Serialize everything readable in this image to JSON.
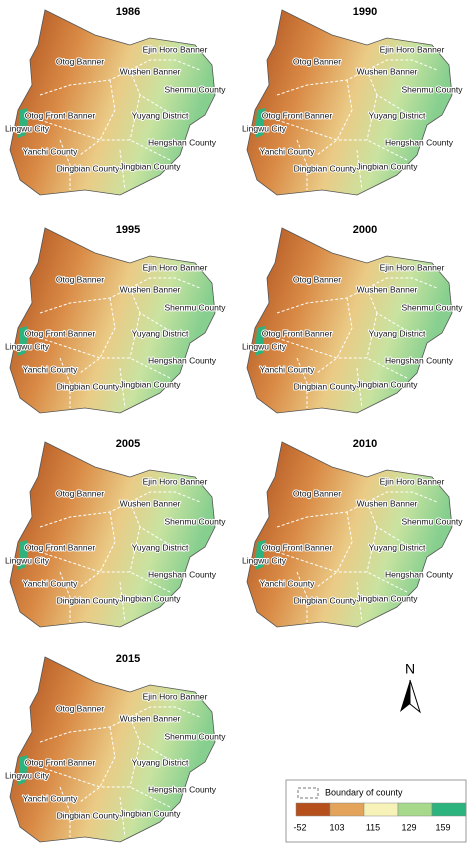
{
  "panels": [
    {
      "year": "1986"
    },
    {
      "year": "1990"
    },
    {
      "year": "1995"
    },
    {
      "year": "2000"
    },
    {
      "year": "2005"
    },
    {
      "year": "2010"
    },
    {
      "year": "2015"
    }
  ],
  "counties": [
    "Otog Banner",
    "Ejin Horo Banner",
    "Shenmu County",
    "Wushen Banner",
    "Otog Front Banner",
    "Yuyang District",
    "Lingwu City",
    "Yanchi County",
    "Hengshan County",
    "Dingbian County",
    "Jingbian County"
  ],
  "north": "N",
  "legend": {
    "boundary_label": "Boundary of county",
    "breaks": [
      "-52",
      "103",
      "115",
      "129",
      "159"
    ],
    "colors": [
      "#b5501c",
      "#e3a35a",
      "#f6f2b8",
      "#a7d98c",
      "#2db37e"
    ]
  }
}
